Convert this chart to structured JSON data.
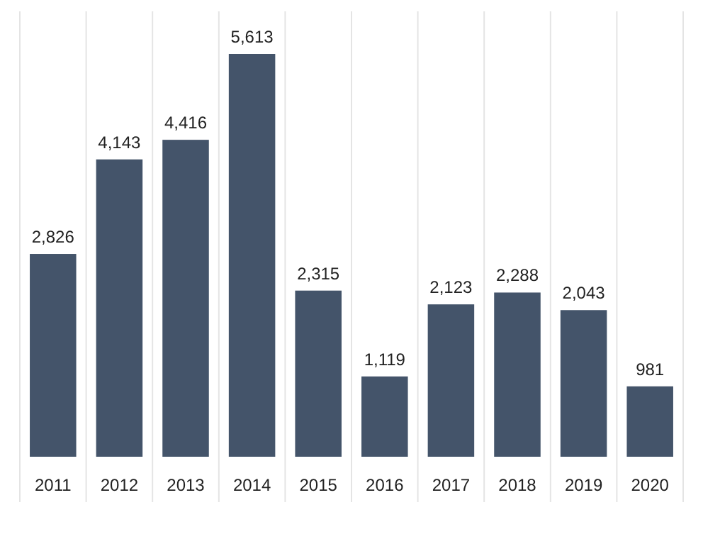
{
  "chart_data": {
    "type": "bar",
    "categories": [
      "2011",
      "2012",
      "2013",
      "2014",
      "2015",
      "2016",
      "2017",
      "2018",
      "2019",
      "2020"
    ],
    "values": [
      2826,
      4143,
      4416,
      5613,
      2315,
      1119,
      2123,
      2288,
      2043,
      981
    ],
    "value_labels": [
      "2,826",
      "4,143",
      "4,416",
      "5,613",
      "2,315",
      "1,119",
      "2,123",
      "2,288",
      "2,043",
      "981"
    ],
    "color": "#44546a",
    "grid": "x"
  }
}
